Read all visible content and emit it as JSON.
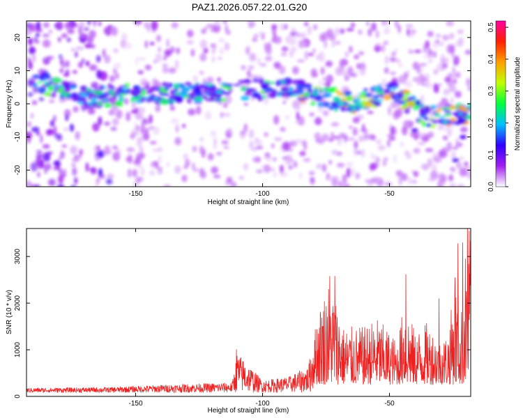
{
  "title": "PAZ1.2026.057.22.01.G20",
  "colorbar": {
    "label": "Normalized spectral amplitude",
    "ticks": [
      0.0,
      0.1,
      0.2,
      0.3,
      0.4,
      0.5
    ],
    "tick_labels": [
      "0.0",
      "0.1",
      "0.2",
      "0.3",
      "0.4",
      "0.5"
    ],
    "range": [
      0,
      0.52
    ],
    "colors": [
      "#ffffff",
      "#a020f0",
      "#3000ff",
      "#00c0ff",
      "#00ff40",
      "#c0ff00",
      "#ffa000",
      "#ff2000",
      "#ff00a0"
    ]
  },
  "chart_data": [
    {
      "type": "heatmap",
      "name": "spectrogram",
      "xlabel": "Height of straight line (km)",
      "ylabel": "Frequency (Hz)",
      "xlim": [
        -193,
        -18
      ],
      "ylim": [
        -25,
        25
      ],
      "xticks": [
        -150,
        -100,
        -50
      ],
      "xtick_labels": [
        "-150",
        "-100",
        "-50"
      ],
      "yticks": [
        -20,
        -10,
        0,
        10,
        20
      ],
      "ytick_labels": [
        "-20",
        "-10",
        "0",
        "10",
        "20"
      ],
      "ridge": {
        "x": [
          -185,
          -170,
          -150,
          -130,
          -110,
          -95,
          -80,
          -65,
          -50,
          -35,
          -20
        ],
        "y": [
          6,
          2,
          3,
          3,
          4,
          5,
          3,
          0,
          4,
          -4,
          -3
        ]
      }
    },
    {
      "type": "line",
      "name": "snr",
      "xlabel": "Height of straight line (km)",
      "ylabel": "SNR (10 * v/v)",
      "xlim": [
        -193,
        -18
      ],
      "ylim": [
        0,
        3600
      ],
      "xticks": [
        -150,
        -100,
        -50
      ],
      "xtick_labels": [
        "-150",
        "-100",
        "-50"
      ],
      "yticks": [
        0,
        1000,
        2000,
        3000
      ],
      "ytick_labels": [
        "0",
        "1000",
        "2000",
        "3000"
      ],
      "color": "#ee2020",
      "envelope": {
        "x": [
          -193,
          -160,
          -140,
          -112,
          -110,
          -100,
          -90,
          -82,
          -78,
          -74,
          -72,
          -68,
          -60,
          -55,
          -50,
          -47,
          -44,
          -40,
          -35,
          -30,
          -27,
          -24,
          -22,
          -20,
          -19,
          -18
        ],
        "y": [
          180,
          200,
          250,
          300,
          950,
          350,
          420,
          650,
          1900,
          2500,
          2300,
          1500,
          1500,
          1700,
          1400,
          1200,
          2100,
          1400,
          1600,
          1200,
          1400,
          2500,
          1600,
          3200,
          2800,
          3600
        ]
      },
      "peaks": [
        {
          "x": -110.3,
          "y": 1010
        },
        {
          "x": -73.5,
          "y": 2580
        },
        {
          "x": -71.5,
          "y": 2580
        },
        {
          "x": -43.5,
          "y": 2620
        },
        {
          "x": -30.5,
          "y": 2100
        },
        {
          "x": -24.2,
          "y": 2550
        },
        {
          "x": -23,
          "y": 3280
        },
        {
          "x": -21.2,
          "y": 3300
        },
        {
          "x": -19.3,
          "y": 3700
        },
        {
          "x": -18.6,
          "y": 3550
        }
      ]
    }
  ]
}
